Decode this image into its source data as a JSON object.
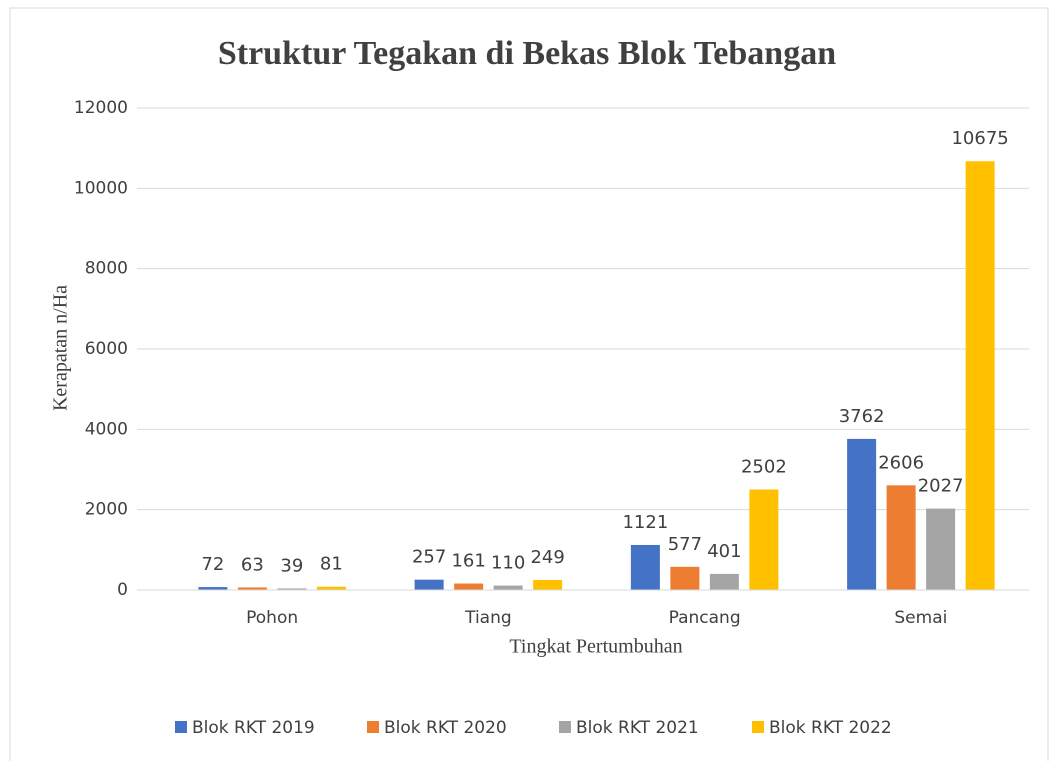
{
  "chart_data": {
    "type": "bar",
    "title": "Struktur Tegakan di Bekas Blok Tebangan",
    "x_label": "Tingkat Pertumbuhan",
    "y_label": "Kerapatan n/Ha",
    "categories": [
      "Pohon",
      "Tiang",
      "Pancang",
      "Semai"
    ],
    "series": [
      {
        "name": "Blok RKT 2019",
        "color": "#4472c4",
        "values": [
          72,
          257,
          1121,
          3762
        ]
      },
      {
        "name": "Blok RKT 2020",
        "color": "#ed7d31",
        "values": [
          63,
          161,
          577,
          2606
        ]
      },
      {
        "name": "Blok RKT 2021",
        "color": "#a5a5a5",
        "values": [
          39,
          110,
          401,
          2027
        ]
      },
      {
        "name": "Blok RKT 2022",
        "color": "#ffc000",
        "values": [
          81,
          249,
          2502,
          10675
        ]
      }
    ],
    "ylim": [
      0,
      12000
    ],
    "yticks": [
      0,
      2000,
      4000,
      6000,
      8000,
      10000,
      12000
    ],
    "grid": true,
    "legend": "bottom"
  }
}
